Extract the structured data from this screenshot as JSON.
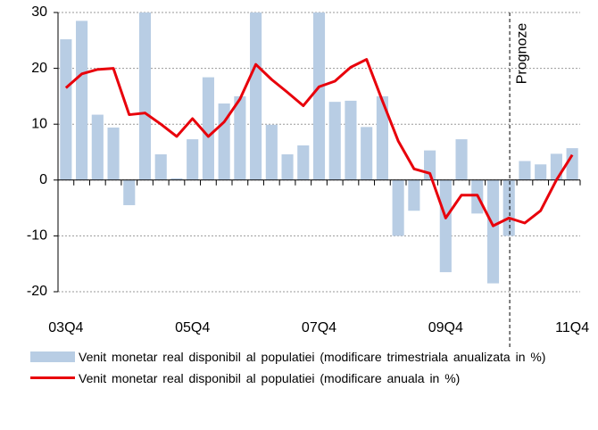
{
  "chart_data": {
    "type": "bar-line",
    "categories": [
      "03Q4",
      null,
      null,
      null,
      null,
      null,
      null,
      null,
      "05Q4",
      null,
      null,
      null,
      null,
      null,
      null,
      null,
      "07Q4",
      null,
      null,
      null,
      null,
      null,
      null,
      null,
      "09Q4",
      null,
      null,
      null,
      null,
      null,
      null,
      null,
      "11Q4"
    ],
    "series": [
      {
        "name": "Venit monetar real disponibil  al populatiei (modificare  trimestriala anualizata in %)",
        "type": "bar",
        "color": "#b8cde4",
        "values": [
          25.2,
          28.5,
          11.7,
          9.4,
          -4.5,
          30,
          4.6,
          0.3,
          7.3,
          18.4,
          13.7,
          15,
          30,
          9.9,
          4.6,
          6.2,
          30,
          14,
          14.2,
          9.5,
          15,
          -10,
          -5.5,
          5.3,
          -16.5,
          7.3,
          -6,
          -18.5,
          -10,
          3.4,
          2.8,
          4.7,
          5.7
        ]
      },
      {
        "name": "Venit monetar real disponibil  al populatiei (modificare  anuala in %)",
        "type": "line",
        "color": "#e8000b",
        "values": [
          16.5,
          19,
          19.8,
          20,
          11.7,
          12,
          10,
          7.8,
          11,
          7.8,
          10.4,
          14.5,
          20.7,
          18,
          15.7,
          13.3,
          16.7,
          17.7,
          20.2,
          21.6,
          14.2,
          7,
          2,
          1.2,
          -6.8,
          -2.7,
          -2.7,
          -8.2,
          -6.8,
          -7.7,
          -5.5,
          0,
          4.5
        ]
      }
    ],
    "ylim": [
      -20,
      30
    ],
    "yticks": [
      -20,
      -10,
      0,
      10,
      20,
      30
    ],
    "grid": true,
    "annotation": "Prognoze"
  }
}
